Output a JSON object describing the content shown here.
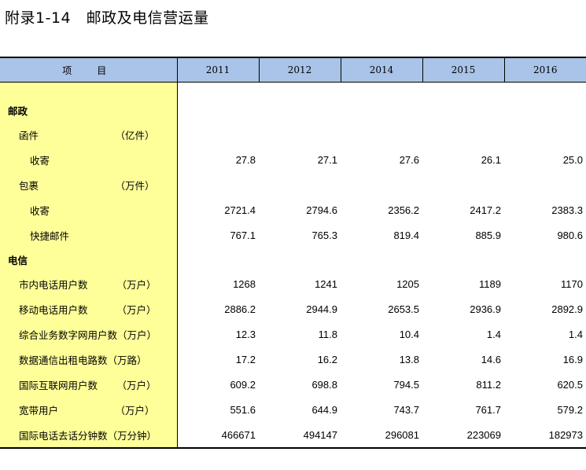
{
  "title": "附录1-14　邮政及电信营运量",
  "header": {
    "item_label": "项　目",
    "years": [
      "2011",
      "2012",
      "2014",
      "2015",
      "2016"
    ]
  },
  "rows": [
    {
      "label": "邮政",
      "unit": "",
      "values": [
        "",
        "",
        "",
        "",
        ""
      ]
    },
    {
      "label": "函件",
      "unit": "（亿件）",
      "values": [
        "",
        "",
        "",
        "",
        ""
      ]
    },
    {
      "label": "收寄",
      "unit": "",
      "values": [
        "27.8",
        "27.1",
        "27.6",
        "26.1",
        "25.0"
      ]
    },
    {
      "label": "包裹",
      "unit": "（万件）",
      "values": [
        "",
        "",
        "",
        "",
        ""
      ]
    },
    {
      "label": "收寄",
      "unit": "",
      "values": [
        "2721.4",
        "2794.6",
        "2356.2",
        "2417.2",
        "2383.3"
      ]
    },
    {
      "label": "快捷邮件",
      "unit": "",
      "values": [
        "767.1",
        "765.3",
        "819.4",
        "885.9",
        "980.6"
      ]
    },
    {
      "label": "电信",
      "unit": "",
      "values": [
        "",
        "",
        "",
        "",
        ""
      ]
    },
    {
      "label": "市内电话用户数",
      "unit": "（万户）",
      "values": [
        "1268",
        "1241",
        "1205",
        "1189",
        "1170"
      ]
    },
    {
      "label": "移动电话用户数",
      "unit": "（万户）",
      "values": [
        "2886.2",
        "2944.9",
        "2653.5",
        "2936.9",
        "2892.9"
      ]
    },
    {
      "label": "综合业务数字网用户数",
      "unit": "（万户）",
      "values": [
        "12.3",
        "11.8",
        "10.4",
        "1.4",
        "1.4"
      ]
    },
    {
      "label": "数据通信出租电路数",
      "unit": "（万路）",
      "values": [
        "17.2",
        "16.2",
        "13.8",
        "14.6",
        "16.9"
      ]
    },
    {
      "label": "国际互联网用户数",
      "unit": "（万户）",
      "values": [
        "609.2",
        "698.8",
        "794.5",
        "811.2",
        "620.5"
      ]
    },
    {
      "label": "宽带用户",
      "unit": "（万户）",
      "values": [
        "551.6",
        "644.9",
        "743.7",
        "761.7",
        "579.2"
      ]
    },
    {
      "label": "国际电话去话分钟数",
      "unit": "（万分钟）",
      "values": [
        "466671",
        "494147",
        "296081",
        "223069",
        "182973"
      ]
    }
  ]
}
